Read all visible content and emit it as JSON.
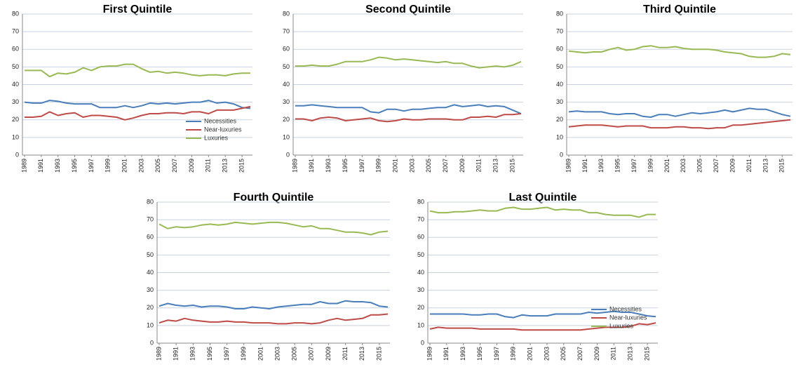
{
  "chart_data": [
    {
      "type": "line",
      "title": "First Quintile",
      "x": [
        1989,
        1990,
        1991,
        1992,
        1993,
        1994,
        1995,
        1996,
        1997,
        1998,
        1999,
        2000,
        2001,
        2002,
        2003,
        2004,
        2005,
        2006,
        2007,
        2008,
        2009,
        2010,
        2011,
        2012,
        2013,
        2014,
        2015,
        2016
      ],
      "xlim": [
        1989,
        2016
      ],
      "xticks": [
        1989,
        1991,
        1993,
        1995,
        1997,
        1999,
        2001,
        2003,
        2005,
        2007,
        2009,
        2011,
        2013,
        2015
      ],
      "ylim": [
        0,
        80
      ],
      "yticks": [
        0,
        10,
        20,
        30,
        40,
        50,
        60,
        70,
        80
      ],
      "grid": true,
      "legend": "lower right",
      "series": [
        {
          "name": "Necessities",
          "color": "#4a7ebb",
          "values": [
            30,
            29.5,
            29.5,
            31,
            30.5,
            29.5,
            29,
            29,
            29,
            27,
            27,
            27,
            28,
            27,
            28,
            29.5,
            29,
            29.5,
            29,
            29.5,
            30,
            30,
            31,
            29.5,
            30,
            29,
            27,
            26.5
          ]
        },
        {
          "name": "Near-luxuries",
          "color": "#be4b48",
          "values": [
            21.5,
            21.5,
            22,
            24.5,
            22.5,
            23.5,
            24,
            21.5,
            22.5,
            22.5,
            22,
            21.5,
            20,
            21,
            22.5,
            23.5,
            23.5,
            24,
            24,
            23.5,
            24.5,
            24.5,
            23.5,
            25.5,
            25.5,
            25.5,
            26.5,
            27.5
          ]
        },
        {
          "name": "Luxuries",
          "color": "#98b954",
          "values": [
            48,
            48,
            48,
            44.5,
            46.5,
            46,
            47,
            49.5,
            48,
            50,
            50.5,
            50.5,
            51.5,
            51.5,
            49,
            47,
            47.5,
            46.5,
            47,
            46.5,
            45.5,
            45,
            45.5,
            45.5,
            45,
            46,
            46.5,
            46.5
          ]
        }
      ]
    },
    {
      "type": "line",
      "title": "Second Quintile",
      "x": [
        1989,
        1990,
        1991,
        1992,
        1993,
        1994,
        1995,
        1996,
        1997,
        1998,
        1999,
        2000,
        2001,
        2002,
        2003,
        2004,
        2005,
        2006,
        2007,
        2008,
        2009,
        2010,
        2011,
        2012,
        2013,
        2014,
        2015,
        2016
      ],
      "xlim": [
        1989,
        2016
      ],
      "xticks": [
        1989,
        1991,
        1993,
        1995,
        1997,
        1999,
        2001,
        2003,
        2005,
        2007,
        2009,
        2011,
        2013,
        2015
      ],
      "ylim": [
        0,
        80
      ],
      "yticks": [
        0,
        10,
        20,
        30,
        40,
        50,
        60,
        70,
        80
      ],
      "grid": true,
      "series": [
        {
          "name": "Necessities",
          "color": "#4a7ebb",
          "values": [
            28,
            28,
            28.5,
            28,
            27.5,
            27,
            27,
            27,
            27,
            24.5,
            24,
            26,
            26,
            25,
            26,
            26,
            26.5,
            27,
            27,
            28.5,
            27.5,
            28,
            28.5,
            27.5,
            28,
            27.5,
            25.5,
            23.5
          ]
        },
        {
          "name": "Near-luxuries",
          "color": "#be4b48",
          "values": [
            20.5,
            20.5,
            19.5,
            21,
            21.5,
            21,
            19.5,
            20,
            20.5,
            21,
            19.5,
            19,
            19.5,
            20.5,
            20,
            20,
            20.5,
            20.5,
            20.5,
            20,
            20,
            21.5,
            21.5,
            22,
            21.5,
            23,
            23,
            23.5
          ]
        },
        {
          "name": "Luxuries",
          "color": "#98b954",
          "values": [
            50.5,
            50.5,
            51,
            50.5,
            50.5,
            51.5,
            53,
            53,
            53,
            54,
            55.5,
            55,
            54,
            54.5,
            54,
            53.5,
            53,
            52.5,
            53,
            52,
            52,
            50.5,
            49.5,
            50,
            50.5,
            50,
            51,
            53
          ]
        }
      ]
    },
    {
      "type": "line",
      "title": "Third Quintile",
      "x": [
        1989,
        1990,
        1991,
        1992,
        1993,
        1994,
        1995,
        1996,
        1997,
        1998,
        1999,
        2000,
        2001,
        2002,
        2003,
        2004,
        2005,
        2006,
        2007,
        2008,
        2009,
        2010,
        2011,
        2012,
        2013,
        2014,
        2015,
        2016
      ],
      "xlim": [
        1989,
        2016
      ],
      "xticks": [
        1989,
        1991,
        1993,
        1995,
        1997,
        1999,
        2001,
        2003,
        2005,
        2007,
        2009,
        2011,
        2013,
        2015
      ],
      "ylim": [
        0,
        80
      ],
      "yticks": [
        0,
        10,
        20,
        30,
        40,
        50,
        60,
        70,
        80
      ],
      "grid": true,
      "series": [
        {
          "name": "Necessities",
          "color": "#4a7ebb",
          "values": [
            24.5,
            25,
            24.5,
            24.5,
            24.5,
            23.5,
            23,
            23.5,
            23.5,
            22,
            21.5,
            23,
            23,
            22,
            23,
            24,
            23.5,
            24,
            24.5,
            25.5,
            24.5,
            25.5,
            26.5,
            26,
            26,
            24.5,
            23,
            22
          ]
        },
        {
          "name": "Near-luxuries",
          "color": "#be4b48",
          "values": [
            16,
            16.5,
            17,
            17,
            17,
            16.5,
            16,
            16.5,
            16.5,
            16.5,
            15.5,
            15.5,
            15.5,
            16,
            16,
            15.5,
            15.5,
            15,
            15.5,
            15.5,
            17,
            17,
            17.5,
            18,
            18.5,
            19,
            19.5,
            20
          ]
        },
        {
          "name": "Luxuries",
          "color": "#98b954",
          "values": [
            59,
            58.5,
            58,
            58.5,
            58.5,
            60,
            61,
            59.5,
            60,
            61.5,
            62,
            61,
            61,
            61.5,
            60.5,
            60,
            60,
            60,
            59.5,
            58.5,
            58,
            57.5,
            56,
            55.5,
            55.5,
            56,
            57.5,
            57
          ]
        }
      ]
    },
    {
      "type": "line",
      "title": "Fourth Quintile",
      "x": [
        1989,
        1990,
        1991,
        1992,
        1993,
        1994,
        1995,
        1996,
        1997,
        1998,
        1999,
        2000,
        2001,
        2002,
        2003,
        2004,
        2005,
        2006,
        2007,
        2008,
        2009,
        2010,
        2011,
        2012,
        2013,
        2014,
        2015,
        2016
      ],
      "xlim": [
        1989,
        2016
      ],
      "xticks": [
        1989,
        1991,
        1993,
        1995,
        1997,
        1999,
        2001,
        2003,
        2005,
        2007,
        2009,
        2011,
        2013,
        2015
      ],
      "ylim": [
        0,
        80
      ],
      "yticks": [
        0,
        10,
        20,
        30,
        40,
        50,
        60,
        70,
        80
      ],
      "grid": true,
      "series": [
        {
          "name": "Necessities",
          "color": "#4a7ebb",
          "values": [
            21,
            22.5,
            21.5,
            21,
            21.5,
            20.5,
            21,
            21,
            20.5,
            19.5,
            19.5,
            20.5,
            20,
            19.5,
            20.5,
            21,
            21.5,
            22,
            22,
            23.5,
            22.5,
            22.5,
            24,
            23.5,
            23.5,
            23,
            21,
            20.5
          ]
        },
        {
          "name": "Near-luxuries",
          "color": "#be4b48",
          "values": [
            11.5,
            13,
            12.5,
            14,
            13,
            12.5,
            12,
            12,
            12.5,
            12,
            12,
            11.5,
            11.5,
            11.5,
            11,
            11,
            11.5,
            11.5,
            11,
            11.5,
            13,
            14,
            13,
            13.5,
            14,
            16,
            16,
            16.5
          ]
        },
        {
          "name": "Luxuries",
          "color": "#98b954",
          "values": [
            67.5,
            65,
            66,
            65.5,
            66,
            67,
            67.5,
            67,
            67.5,
            68.5,
            68,
            67.5,
            68,
            68.5,
            68.5,
            68,
            67,
            66,
            66.5,
            65,
            65,
            64,
            63,
            63,
            62.5,
            61.5,
            63,
            63.5
          ]
        }
      ]
    },
    {
      "type": "line",
      "title": "Last Quintile",
      "x": [
        1989,
        1990,
        1991,
        1992,
        1993,
        1994,
        1995,
        1996,
        1997,
        1998,
        1999,
        2000,
        2001,
        2002,
        2003,
        2004,
        2005,
        2006,
        2007,
        2008,
        2009,
        2010,
        2011,
        2012,
        2013,
        2014,
        2015,
        2016
      ],
      "xlim": [
        1989,
        2016
      ],
      "xticks": [
        1989,
        1991,
        1993,
        1995,
        1997,
        1999,
        2001,
        2003,
        2005,
        2007,
        2009,
        2011,
        2013,
        2015
      ],
      "ylim": [
        0,
        80
      ],
      "yticks": [
        0,
        10,
        20,
        30,
        40,
        50,
        60,
        70,
        80
      ],
      "grid": true,
      "legend": "lower right",
      "series": [
        {
          "name": "Necessities",
          "color": "#4a7ebb",
          "values": [
            16.5,
            16.5,
            16.5,
            16.5,
            16.5,
            16,
            16,
            16.5,
            16.5,
            15,
            14.5,
            16,
            15.5,
            15.5,
            15.5,
            16.5,
            16.5,
            16.5,
            16.5,
            17.5,
            17,
            17.5,
            18,
            17.5,
            17.5,
            16.5,
            15.5,
            15
          ]
        },
        {
          "name": "Near-luxuries",
          "color": "#be4b48",
          "values": [
            8,
            9,
            8.5,
            8.5,
            8.5,
            8.5,
            8,
            8,
            8,
            8,
            8,
            7.5,
            7.5,
            7.5,
            7.5,
            7.5,
            7.5,
            7.5,
            7.5,
            8,
            8.5,
            9,
            9,
            9,
            9.5,
            11,
            10.5,
            11.5
          ]
        },
        {
          "name": "Luxuries",
          "color": "#98b954",
          "values": [
            75,
            74,
            74,
            74.5,
            74.5,
            75,
            75.5,
            75,
            75,
            76.5,
            77,
            76,
            76,
            76.5,
            77,
            75.5,
            76,
            75.5,
            75.5,
            74,
            74,
            73,
            72.5,
            72.5,
            72.5,
            71.5,
            73,
            73
          ]
        }
      ]
    }
  ]
}
